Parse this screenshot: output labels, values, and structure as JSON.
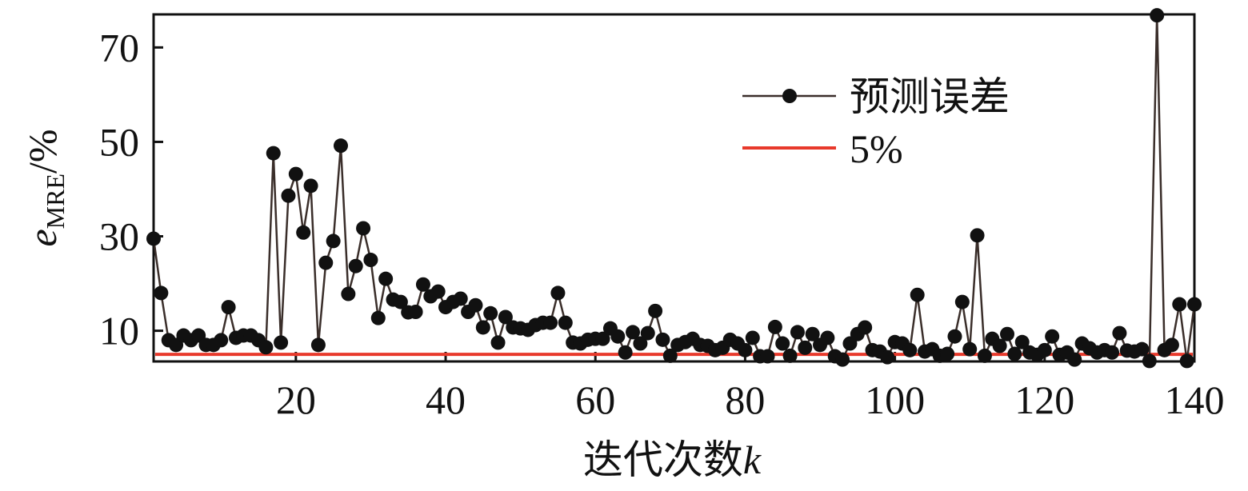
{
  "chart_data": {
    "type": "line",
    "ylabel": {
      "symbol": "e",
      "subscript": "MRE",
      "suffix": "/%"
    },
    "xlabel": {
      "text": "迭代次数",
      "symbol": "k"
    },
    "x": [
      1,
      2,
      3,
      4,
      5,
      6,
      7,
      8,
      9,
      10,
      11,
      12,
      13,
      14,
      15,
      16,
      17,
      18,
      19,
      20,
      21,
      22,
      23,
      24,
      25,
      26,
      27,
      28,
      29,
      30,
      31,
      32,
      33,
      34,
      35,
      36,
      37,
      38,
      39,
      40,
      41,
      42,
      43,
      44,
      45,
      46,
      47,
      48,
      49,
      50,
      51,
      52,
      53,
      54,
      55,
      56,
      57,
      58,
      59,
      60,
      61,
      62,
      63,
      64,
      65,
      66,
      67,
      68,
      69,
      70,
      71,
      72,
      73,
      74,
      75,
      76,
      77,
      78,
      79,
      80,
      81,
      82,
      83,
      84,
      85,
      86,
      87,
      88,
      89,
      90,
      91,
      92,
      93,
      94,
      95,
      96,
      97,
      98,
      99,
      100,
      101,
      102,
      103,
      104,
      105,
      106,
      107,
      108,
      109,
      110,
      111,
      112,
      113,
      114,
      115,
      116,
      117,
      118,
      119,
      120,
      121,
      122,
      123,
      124,
      125,
      126,
      127,
      128,
      129,
      130,
      131,
      132,
      133,
      134,
      135,
      136,
      137,
      138,
      139,
      140
    ],
    "series": [
      {
        "name": "预测误差",
        "color": "#3a2e2a",
        "marker_color": "#111111",
        "values": [
          29.5,
          18,
          8,
          7,
          9,
          8,
          9,
          7,
          7,
          8,
          15,
          8.5,
          9,
          9,
          8,
          6.5,
          47.6,
          7.5,
          38.6,
          43.2,
          30.8,
          40.7,
          7,
          24.4,
          29,
          49.2,
          17.8,
          23.7,
          31.7,
          25,
          12.7,
          21,
          16.6,
          16.1,
          13.9,
          14,
          19.8,
          17.3,
          18.3,
          15,
          16.1,
          16.8,
          14,
          15.4,
          10.7,
          13.7,
          7.5,
          12.9,
          10.7,
          10.5,
          10.2,
          11.2,
          11.7,
          11.7,
          18,
          11.7,
          7.5,
          7.3,
          8.1,
          8.3,
          8.3,
          10.5,
          8.8,
          5.4,
          9.7,
          7.3,
          9.5,
          14.2,
          8.1,
          4.7,
          7,
          7.6,
          8.3,
          7,
          6.8,
          5.9,
          6.4,
          8.1,
          7.3,
          5.9,
          8.5,
          4.6,
          4.6,
          10.8,
          7.3,
          4.7,
          9.7,
          6.4,
          9.3,
          7,
          8.5,
          4.6,
          3.9,
          7.3,
          9.3,
          10.7,
          5.9,
          5.6,
          4.4,
          7.6,
          7.3,
          5.9,
          17.6,
          5.6,
          6.1,
          4.7,
          5.1,
          8.8,
          16.1,
          6.1,
          30.2,
          4.7,
          8.3,
          6.8,
          9.3,
          5.1,
          7.6,
          5.4,
          4.9,
          5.9,
          8.8,
          4.9,
          5.4,
          3.9,
          7.3,
          6.3,
          5.4,
          5.9,
          5.4,
          9.5,
          5.8,
          5.6,
          6.1,
          3.6,
          76.8,
          5.9,
          7,
          15.6,
          3.6,
          15.6
        ]
      }
    ],
    "reference_line": {
      "name": "5%",
      "value": 5,
      "color": "#e8392b"
    },
    "xlim": [
      1,
      140
    ],
    "ylim": [
      3.5,
      77
    ],
    "xticks": [
      20,
      40,
      60,
      80,
      100,
      120,
      140
    ],
    "yticks": [
      10,
      30,
      50,
      70
    ]
  }
}
